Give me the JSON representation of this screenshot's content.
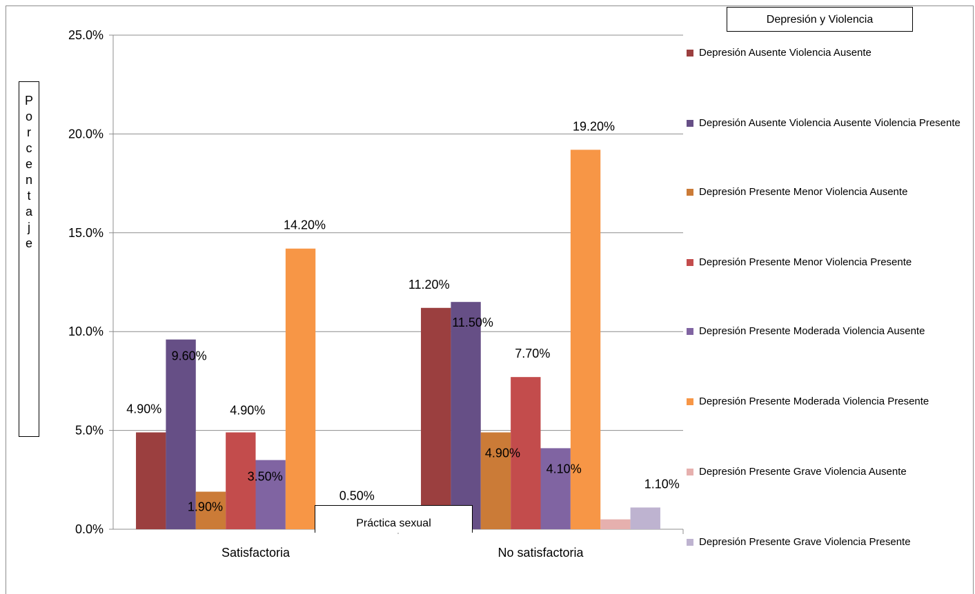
{
  "chart_data": {
    "type": "bar",
    "title": "",
    "xlabel": "Práctica sexual",
    "ylabel": "Porcentaje",
    "ylim": [
      0,
      25
    ],
    "yticks": [
      "0.0%",
      "5.0%",
      "10.0%",
      "15.0%",
      "20.0%",
      "25.0%"
    ],
    "grid": true,
    "legend_position": "right",
    "legend_title": "Depresión y Violencia",
    "categories": [
      "Satisfactoria",
      "No satisfactoria"
    ],
    "series": [
      {
        "name": "Depresión Ausente Violencia Ausente",
        "color": "#9B3F3F",
        "values": [
          4.9,
          11.2
        ],
        "labels": [
          "4.90%",
          "11.20%"
        ]
      },
      {
        "name": "Depresión Ausente Violencia Ausente Violencia Presente",
        "color": "#664F86",
        "values": [
          9.6,
          11.5
        ],
        "labels": [
          "9.60%",
          "11.50%"
        ]
      },
      {
        "name": "Depresión Presente Menor  Violencia Ausente",
        "color": "#CB7B37",
        "values": [
          1.9,
          4.9
        ],
        "labels": [
          "1.90%",
          "4.90%"
        ]
      },
      {
        "name": "Depresión Presente Menor  Violencia Presente",
        "color": "#C34C4C",
        "values": [
          4.9,
          7.7
        ],
        "labels": [
          "4.90%",
          "7.70%"
        ]
      },
      {
        "name": "Depresión Presente Moderada  Violencia Ausente",
        "color": "#8064A2",
        "values": [
          3.5,
          4.1
        ],
        "labels": [
          "3.50%",
          "4.10%"
        ]
      },
      {
        "name": "Depresión Presente Moderada  Violencia Presente",
        "color": "#F79646",
        "values": [
          14.2,
          19.2
        ],
        "labels": [
          "14.20%",
          "19.20%"
        ]
      },
      {
        "name": "Depresión Presente Grave  Violencia Ausente",
        "color": "#E6B0AE",
        "values": [
          0.0,
          0.5
        ],
        "labels": [
          "",
          ""
        ]
      },
      {
        "name": "Depresión Presente Grave  Violencia Presente",
        "color": "#BEB3D0",
        "values": [
          0.5,
          1.1
        ],
        "labels": [
          "0.50%",
          "1.10%"
        ]
      }
    ]
  }
}
